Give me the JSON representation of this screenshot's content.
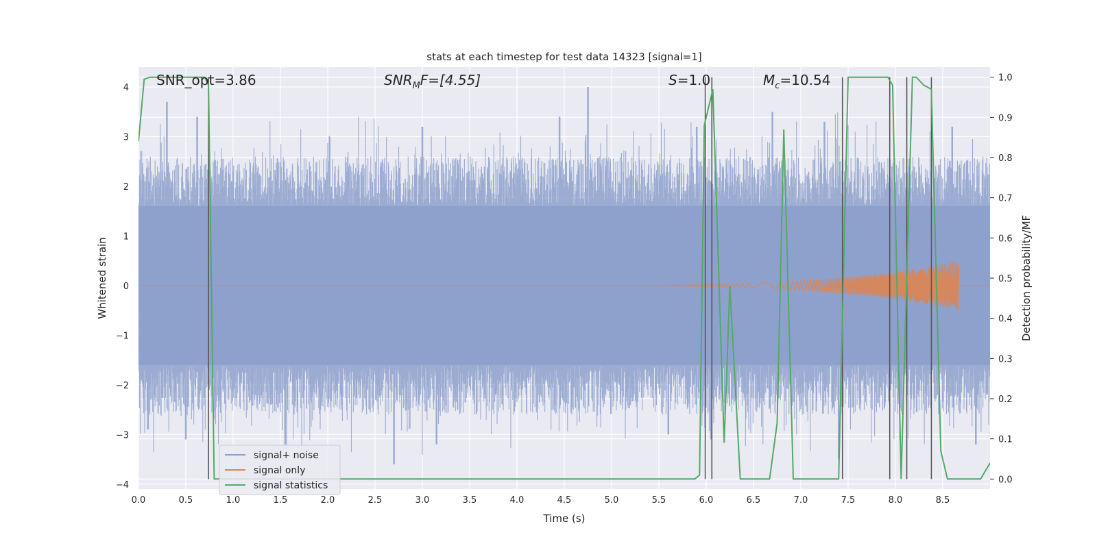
{
  "chart_data": {
    "type": "line",
    "title": "stats at each timestep for test data 14323 [signal=1]",
    "xlabel": "Time (s)",
    "ylabel": "Whitened strain",
    "ylabel_right": "Detection probability/MF",
    "xlim": [
      0.0,
      9.0
    ],
    "ylim": [
      -4.1,
      4.4
    ],
    "ylim_right": [
      -0.025,
      1.025
    ],
    "x_ticks": [
      "0.0",
      "0.5",
      "1.0",
      "1.5",
      "2.0",
      "2.5",
      "3.0",
      "3.5",
      "4.0",
      "4.5",
      "5.0",
      "5.5",
      "6.0",
      "6.5",
      "7.0",
      "7.5",
      "8.0",
      "8.5"
    ],
    "y_ticks": [
      "4",
      "3",
      "2",
      "1",
      "0",
      "−1",
      "−2",
      "−3",
      "−4"
    ],
    "y_ticks_right": [
      "1.0",
      "0.9",
      "0.8",
      "0.7",
      "0.6",
      "0.5",
      "0.4",
      "0.3",
      "0.2",
      "0.1",
      "0.0"
    ],
    "annotations": {
      "snr_opt": "SNR_opt=3.86",
      "snr_mf_main": "SNR",
      "snr_mf_sub": "M",
      "snr_mf_rest": "F=[4.55]",
      "s_main": "S",
      "s_rest": "=1.0",
      "mc_main": "M",
      "mc_sub": "c",
      "mc_rest": "=10.54"
    },
    "grid": true,
    "legend_position": "lower-left",
    "series": [
      {
        "name": "signal+ noise",
        "color": "#8da0cb",
        "description_values": "noise strain, roughly within -3.7 to 4.0",
        "envelope": [
          [
            0.0,
            1.6
          ],
          [
            9.0,
            1.6
          ]
        ],
        "peaks": [
          [
            0.3,
            3.7
          ],
          [
            0.62,
            3.4
          ],
          [
            2.02,
            3.0
          ],
          [
            3.0,
            3.2
          ],
          [
            4.45,
            3.4
          ],
          [
            4.75,
            4.0
          ],
          [
            5.9,
            3.2
          ],
          [
            6.7,
            3.5
          ],
          [
            7.25,
            3.3
          ],
          [
            8.6,
            3.2
          ]
        ],
        "troughs": [
          [
            0.1,
            -2.9
          ],
          [
            0.5,
            -3.1
          ],
          [
            1.55,
            -3.2
          ],
          [
            2.7,
            -3.6
          ],
          [
            3.15,
            -3.2
          ],
          [
            5.6,
            -3.0
          ],
          [
            6.05,
            -3.1
          ],
          [
            7.4,
            -3.5
          ],
          [
            8.85,
            -3.2
          ]
        ]
      },
      {
        "name": "signal only",
        "color": "#dd8452",
        "chirp": {
          "start": 4.5,
          "end": 8.67,
          "max_amplitude": 0.5
        }
      },
      {
        "name": "signal statistics",
        "color": "#55a868",
        "x": [
          0.0,
          0.06,
          0.12,
          0.7,
          0.74,
          0.8,
          5.88,
          5.93,
          5.98,
          6.07,
          6.19,
          6.25,
          6.36,
          6.67,
          6.75,
          6.82,
          6.92,
          7.4,
          7.5,
          7.92,
          7.97,
          8.06,
          8.18,
          8.22,
          8.3,
          8.38,
          8.48,
          8.55,
          8.9,
          9.0
        ],
        "y": [
          0.84,
          0.995,
          1.0,
          1.0,
          0.98,
          0.0,
          0.0,
          0.01,
          0.88,
          0.97,
          0.09,
          0.48,
          0.0,
          0.0,
          0.14,
          0.87,
          0.0,
          0.0,
          1.0,
          1.0,
          0.98,
          0.0,
          1.0,
          1.0,
          0.98,
          0.97,
          0.07,
          0.0,
          0.0,
          0.04
        ]
      }
    ],
    "vlines_x": [
      0.74,
      5.99,
      6.06,
      7.44,
      7.94,
      8.12,
      8.38
    ]
  },
  "colors": {
    "axes_bg": "#eaeaf2",
    "grid": "#ffffff",
    "vline": "#555555"
  }
}
